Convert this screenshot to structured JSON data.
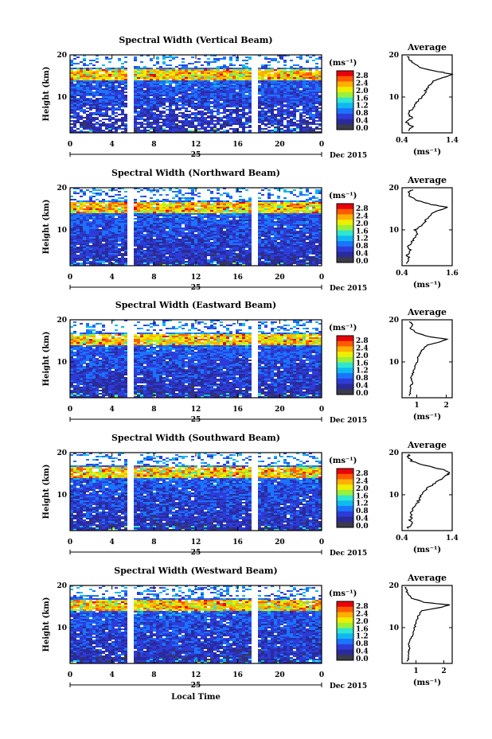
{
  "chart_data": {
    "type": "heatmap",
    "x_axis_label": "Local Time",
    "day_label": "25",
    "month_label": "Dec 2015",
    "y_axis_label": "Height (km)",
    "x_ticks": [
      "0",
      "4",
      "8",
      "12",
      "16",
      "20",
      "0"
    ],
    "y_ticks": [
      "20",
      "10"
    ],
    "x_range_hours": [
      0,
      24
    ],
    "y_range_km": [
      1.5,
      20
    ],
    "data_gaps_hours": [
      [
        5.5,
        6.2
      ],
      [
        17.3,
        18.0
      ]
    ],
    "colorbar": {
      "unit": "(ms⁻¹)",
      "tick_labels": [
        "2.8",
        "2.4",
        "2.0",
        "1.6",
        "1.2",
        "0.8",
        "0.4",
        "0.0"
      ],
      "colors": [
        "#e8000b",
        "#ff5a00",
        "#ffb000",
        "#eeee00",
        "#9af03a",
        "#2ee6d2",
        "#10b8f0",
        "#1a74ff",
        "#2d3cd8",
        "#2a2a9c",
        "#3a3a4a"
      ]
    },
    "average_panel": {
      "title": "Average",
      "unit": "(ms⁻¹)",
      "y_ticks": [
        "20",
        "10"
      ]
    },
    "panels": [
      {
        "title": "Spectral Width (Vertical Beam)",
        "avg_x_ticks": [
          "0.4",
          "1.4"
        ],
        "avg_xlim": [
          0.4,
          1.4
        ],
        "profile": [
          [
            2,
            0.5
          ],
          [
            3,
            0.62
          ],
          [
            4,
            0.48
          ],
          [
            5,
            0.6
          ],
          [
            6,
            0.5
          ],
          [
            7,
            0.58
          ],
          [
            8,
            0.66
          ],
          [
            9,
            0.72
          ],
          [
            10,
            0.8
          ],
          [
            11,
            0.85
          ],
          [
            12,
            0.9
          ],
          [
            13,
            0.98
          ],
          [
            14,
            1.05
          ],
          [
            14.8,
            1.3
          ],
          [
            15.4,
            1.4
          ],
          [
            16,
            1.15
          ],
          [
            17,
            0.75
          ],
          [
            18,
            0.62
          ],
          [
            19,
            0.55
          ],
          [
            19.6,
            0.5
          ]
        ]
      },
      {
        "title": "Spectral Width (Northward Beam)",
        "avg_x_ticks": [
          "0.4",
          "1.6"
        ],
        "avg_xlim": [
          0.4,
          1.6
        ],
        "profile": [
          [
            2,
            0.5
          ],
          [
            3,
            0.58
          ],
          [
            4,
            0.52
          ],
          [
            5,
            0.6
          ],
          [
            6,
            0.55
          ],
          [
            7,
            0.62
          ],
          [
            8,
            0.7
          ],
          [
            9,
            0.75
          ],
          [
            10,
            0.72
          ],
          [
            11,
            0.85
          ],
          [
            12,
            0.95
          ],
          [
            13,
            1.05
          ],
          [
            14,
            1.1
          ],
          [
            14.8,
            1.35
          ],
          [
            15.4,
            1.5
          ],
          [
            16,
            1.1
          ],
          [
            17,
            0.75
          ],
          [
            18,
            0.6
          ],
          [
            19,
            0.55
          ],
          [
            19.6,
            0.65
          ]
        ]
      },
      {
        "title": "Spectral Width (Eastward Beam)",
        "avg_x_ticks": [
          "1",
          "2"
        ],
        "avg_xlim": [
          0.5,
          2.2
        ],
        "profile": [
          [
            2,
            0.75
          ],
          [
            3,
            0.8
          ],
          [
            4,
            0.78
          ],
          [
            5,
            0.85
          ],
          [
            6,
            0.8
          ],
          [
            7,
            0.85
          ],
          [
            8,
            0.9
          ],
          [
            9,
            0.95
          ],
          [
            10,
            1.0
          ],
          [
            11,
            1.05
          ],
          [
            12,
            1.1
          ],
          [
            13,
            1.2
          ],
          [
            14,
            1.35
          ],
          [
            14.8,
            1.8
          ],
          [
            15.4,
            2.05
          ],
          [
            16,
            1.4
          ],
          [
            17,
            0.95
          ],
          [
            18,
            0.8
          ],
          [
            19,
            0.85
          ],
          [
            19.6,
            0.75
          ]
        ]
      },
      {
        "title": "Spectral Width (Southward Beam)",
        "avg_x_ticks": [
          "0.4",
          "1.4"
        ],
        "avg_xlim": [
          0.4,
          1.4
        ],
        "profile": [
          [
            2,
            0.5
          ],
          [
            3,
            0.6
          ],
          [
            4,
            0.55
          ],
          [
            5,
            0.6
          ],
          [
            6,
            0.58
          ],
          [
            7,
            0.62
          ],
          [
            8,
            0.7
          ],
          [
            9,
            0.75
          ],
          [
            10,
            0.8
          ],
          [
            11,
            0.85
          ],
          [
            12,
            0.95
          ],
          [
            13,
            1.1
          ],
          [
            14,
            1.2
          ],
          [
            14.8,
            1.3
          ],
          [
            15.4,
            1.35
          ],
          [
            16,
            1.2
          ],
          [
            17,
            0.85
          ],
          [
            18,
            0.6
          ],
          [
            19,
            0.5
          ],
          [
            19.6,
            0.55
          ]
        ]
      },
      {
        "title": "Spectral Width (Westward Beam)",
        "avg_x_ticks": [
          "1",
          "2"
        ],
        "avg_xlim": [
          0.5,
          2.3
        ],
        "profile": [
          [
            2,
            0.7
          ],
          [
            3,
            0.75
          ],
          [
            4,
            0.72
          ],
          [
            5,
            0.78
          ],
          [
            6,
            0.75
          ],
          [
            7,
            0.8
          ],
          [
            8,
            0.85
          ],
          [
            9,
            0.9
          ],
          [
            10,
            0.95
          ],
          [
            11,
            1.0
          ],
          [
            12,
            1.05
          ],
          [
            13,
            1.1
          ],
          [
            14,
            1.2
          ],
          [
            14.8,
            1.9
          ],
          [
            15.4,
            2.2
          ],
          [
            16,
            1.3
          ],
          [
            17,
            0.85
          ],
          [
            18,
            0.7
          ],
          [
            19,
            0.65
          ],
          [
            19.6,
            0.6
          ]
        ]
      }
    ]
  }
}
